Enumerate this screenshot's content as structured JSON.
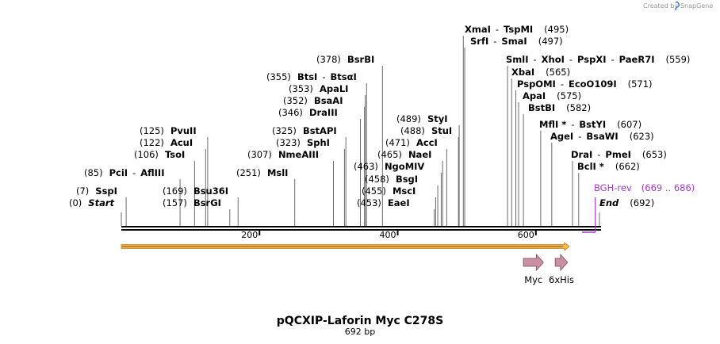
{
  "credit": {
    "text": "Created by",
    "brand": "SnapGene"
  },
  "plasmid": {
    "name": "pQCXIP-Laforin Myc C278S",
    "length_label": "692 bp",
    "length": 692
  },
  "ruler": {
    "ticks": [
      {
        "pos": 200,
        "label": "200"
      },
      {
        "pos": 400,
        "label": "400"
      },
      {
        "pos": 600,
        "label": "600"
      }
    ]
  },
  "sites": [
    {
      "pos": 0,
      "pos_label": "(0)",
      "names": [
        "Start"
      ],
      "italic": true
    },
    {
      "pos": 7,
      "pos_label": "(7)",
      "names": [
        "SspI"
      ]
    },
    {
      "pos": 85,
      "pos_label": "(85)",
      "names": [
        "PciI",
        "AflIII"
      ]
    },
    {
      "pos": 106,
      "pos_label": "(106)",
      "names": [
        "TsoI"
      ]
    },
    {
      "pos": 122,
      "pos_label": "(122)",
      "names": [
        "AcuI"
      ]
    },
    {
      "pos": 125,
      "pos_label": "(125)",
      "names": [
        "PvuII"
      ]
    },
    {
      "pos": 157,
      "pos_label": "(157)",
      "names": [
        "BsrGI"
      ]
    },
    {
      "pos": 169,
      "pos_label": "(169)",
      "names": [
        "Bsu36I"
      ]
    },
    {
      "pos": 251,
      "pos_label": "(251)",
      "names": [
        "MslI"
      ]
    },
    {
      "pos": 307,
      "pos_label": "(307)",
      "names": [
        "NmeAIII"
      ]
    },
    {
      "pos": 323,
      "pos_label": "(323)",
      "names": [
        "SphI"
      ]
    },
    {
      "pos": 325,
      "pos_label": "(325)",
      "names": [
        "BstAPI"
      ]
    },
    {
      "pos": 346,
      "pos_label": "(346)",
      "names": [
        "DraIII"
      ]
    },
    {
      "pos": 352,
      "pos_label": "(352)",
      "names": [
        "BsaAI"
      ]
    },
    {
      "pos": 353,
      "pos_label": "(353)",
      "names": [
        "ApaLI"
      ]
    },
    {
      "pos": 355,
      "pos_label": "(355)",
      "names": [
        "BtsI",
        "BtsαI"
      ]
    },
    {
      "pos": 378,
      "pos_label": "(378)",
      "names": [
        "BsrBI"
      ]
    },
    {
      "pos": 453,
      "pos_label": "(453)",
      "names": [
        "EaeI"
      ]
    },
    {
      "pos": 455,
      "pos_label": "(455)",
      "names": [
        "MscI"
      ]
    },
    {
      "pos": 458,
      "pos_label": "(458)",
      "names": [
        "BsgI"
      ]
    },
    {
      "pos": 463,
      "pos_label": "(463)",
      "names": [
        "NgoMIV"
      ]
    },
    {
      "pos": 465,
      "pos_label": "(465)",
      "names": [
        "NaeI"
      ]
    },
    {
      "pos": 471,
      "pos_label": "(471)",
      "names": [
        "AccI"
      ]
    },
    {
      "pos": 488,
      "pos_label": "(488)",
      "names": [
        "StuI"
      ]
    },
    {
      "pos": 489,
      "pos_label": "(489)",
      "names": [
        "StyI"
      ]
    },
    {
      "pos": 495,
      "pos_label": "(495)",
      "names": [
        "XmaI",
        "TspMI"
      ]
    },
    {
      "pos": 497,
      "pos_label": "(497)",
      "names": [
        "SrfI",
        "SmaI"
      ]
    },
    {
      "pos": 559,
      "pos_label": "(559)",
      "names": [
        "SmlI",
        "XhoI",
        "PspXI",
        "PaeR7I"
      ]
    },
    {
      "pos": 565,
      "pos_label": "(565)",
      "names": [
        "XbaI"
      ]
    },
    {
      "pos": 571,
      "pos_label": "(571)",
      "names": [
        "PspOMI",
        "EcoO109I"
      ]
    },
    {
      "pos": 575,
      "pos_label": "(575)",
      "names": [
        "ApaI"
      ]
    },
    {
      "pos": 582,
      "pos_label": "(582)",
      "names": [
        "BstBI"
      ]
    },
    {
      "pos": 607,
      "pos_label": "(607)",
      "names": [
        "MflI *",
        "BstYI"
      ]
    },
    {
      "pos": 623,
      "pos_label": "(623)",
      "names": [
        "AgeI",
        "BsaWI"
      ]
    },
    {
      "pos": 653,
      "pos_label": "(653)",
      "names": [
        "DraI",
        "PmeI"
      ]
    },
    {
      "pos": 662,
      "pos_label": "(662)",
      "names": [
        "BclI *"
      ]
    },
    {
      "pos": 692,
      "pos_label": "(692)",
      "names": [
        "End"
      ],
      "italic": true
    }
  ],
  "primers": [
    {
      "name": "BGH-rev",
      "range_label": "(669 .. 686)",
      "start": 669,
      "end": 686
    }
  ],
  "features": [
    {
      "name": "Myc",
      "start": 582,
      "end": 611,
      "color": "#c98fa3"
    },
    {
      "name": "6xHis",
      "start": 628,
      "end": 646,
      "color": "#c98fa3"
    }
  ],
  "orf": {
    "start": 0,
    "end": 646,
    "color": "#f5b84e"
  },
  "colors": {
    "primer": "#a23cc4",
    "backbone": "#000000",
    "line": "#555555"
  }
}
